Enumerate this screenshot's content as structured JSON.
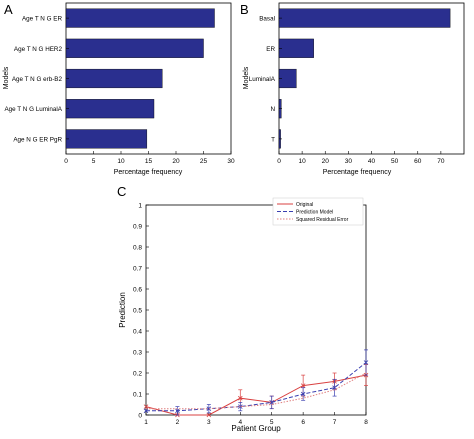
{
  "panels": {
    "A": "A",
    "B": "B",
    "C": "C"
  },
  "chart_data": [
    {
      "type": "bar",
      "orientation": "horizontal",
      "categories": [
        "Age T N G ER",
        "Age T N G HER2",
        "Age T N G erb-B2",
        "Age T N G LuminalA",
        "Age N G ER PgR"
      ],
      "values": [
        27,
        25,
        17.5,
        16,
        14.7
      ],
      "xlabel": "Percentage frequency",
      "ylabel": "Models",
      "xlim": [
        0,
        30
      ],
      "xticks": [
        0,
        5,
        10,
        15,
        20,
        25,
        30
      ],
      "bar_color": "#2a2f8f"
    },
    {
      "type": "bar",
      "orientation": "horizontal",
      "categories": [
        "Basal",
        "ER",
        "LuminalA",
        "N",
        "T"
      ],
      "values": [
        74,
        15,
        7.5,
        1,
        0.7
      ],
      "xlabel": "Percentage frequency",
      "ylabel": "Models",
      "xlim": [
        0,
        80
      ],
      "xticks": [
        0,
        10,
        20,
        30,
        40,
        50,
        60,
        70
      ],
      "bar_color": "#2a2f8f"
    },
    {
      "type": "line",
      "x": [
        1,
        2,
        3,
        4,
        5,
        6,
        7,
        8
      ],
      "xlabel": "Patient Group",
      "ylabel": "Prediction",
      "xlim": [
        1,
        8
      ],
      "ylim": [
        0,
        1
      ],
      "xticks": [
        1,
        2,
        3,
        4,
        5,
        6,
        7,
        8
      ],
      "yticks": [
        0,
        0.1,
        0.2,
        0.3,
        0.4,
        0.5,
        0.6,
        0.7,
        0.8,
        0.9,
        1
      ],
      "legend_position": "top-right",
      "series": [
        {
          "name": "Original",
          "values": [
            0.04,
            0.0,
            0.0,
            0.08,
            0.06,
            0.14,
            0.16,
            0.19
          ],
          "err": [
            0.0,
            0.0,
            0.0,
            0.04,
            0.03,
            0.05,
            0.04,
            0.05
          ],
          "color": "#d94040",
          "style": "solid"
        },
        {
          "name": "Prediction Model",
          "values": [
            0.02,
            0.02,
            0.03,
            0.04,
            0.06,
            0.1,
            0.13,
            0.25
          ],
          "err": [
            0.0,
            0.02,
            0.02,
            0.02,
            0.03,
            0.03,
            0.04,
            0.06
          ],
          "color": "#3a3fb0",
          "style": "dashed"
        },
        {
          "name": "Squared Residual Error",
          "values": [
            0.03,
            0.03,
            0.03,
            0.04,
            0.05,
            0.08,
            0.12,
            0.2
          ],
          "color": "#e08080",
          "style": "dotted"
        }
      ]
    }
  ]
}
